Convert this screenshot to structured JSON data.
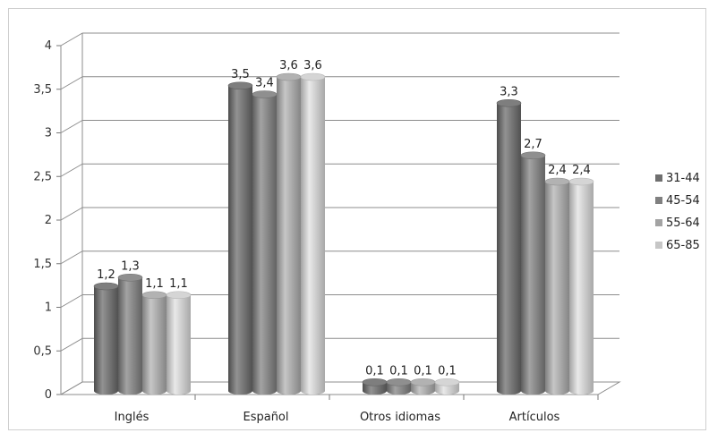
{
  "chart_data": {
    "type": "bar",
    "categories": [
      "Inglés",
      "Español",
      "Otros idiomas",
      "Artículos"
    ],
    "series": [
      {
        "name": "31-44",
        "values": [
          1.2,
          3.5,
          0.1,
          3.3
        ],
        "labels": [
          "1,2",
          "3,5",
          "0,1",
          "3,3"
        ],
        "color": "#6f6f6f"
      },
      {
        "name": "45-54",
        "values": [
          1.3,
          3.4,
          0.1,
          2.7
        ],
        "labels": [
          "1,3",
          "3,4",
          "0,1",
          "2,7"
        ],
        "color": "#808080"
      },
      {
        "name": "55-64",
        "values": [
          1.1,
          3.6,
          0.1,
          2.4
        ],
        "labels": [
          "1,1",
          "3,6",
          "0,1",
          "2,4"
        ],
        "color": "#a3a3a3"
      },
      {
        "name": "65-85",
        "values": [
          1.1,
          3.6,
          0.1,
          2.4
        ],
        "labels": [
          "1,1",
          "3,6",
          "0,1",
          "2,4"
        ],
        "color": "#c6c6c6"
      }
    ],
    "ylim": [
      0,
      4
    ],
    "yticks": [
      "0",
      "0,5",
      "1",
      "1,5",
      "2",
      "2,5",
      "3",
      "3,5",
      "4"
    ],
    "title": "",
    "xlabel": "",
    "ylabel": "",
    "grid": true,
    "legend": "right"
  }
}
